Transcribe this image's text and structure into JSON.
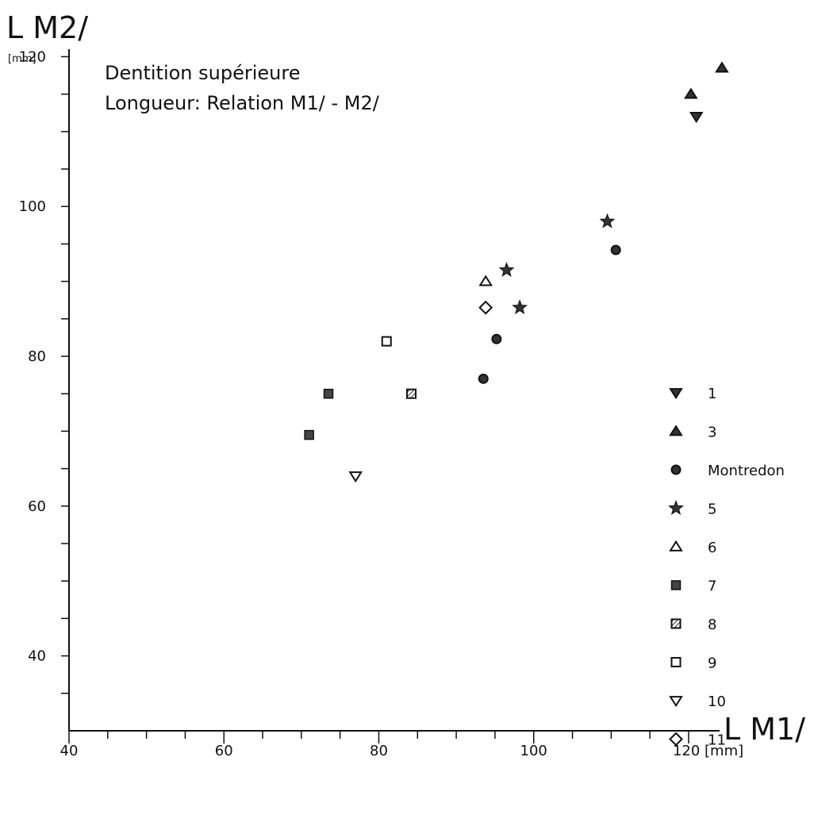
{
  "chart_data": {
    "type": "scatter",
    "title": "Dentition supérieure",
    "subtitle": "Longueur: Relation M1/ - M2/",
    "xlabel": "L M1/",
    "ylabel": "L M2/",
    "x_unit": "[mm]",
    "y_unit": "[mm]",
    "xlim": [
      40,
      124
    ],
    "ylim": [
      30,
      121
    ],
    "x_ticks": [
      40,
      60,
      80,
      100,
      120
    ],
    "x_tick_labels": [
      "40",
      "60",
      "80",
      "100",
      "120 [mm]"
    ],
    "y_ticks": [
      40,
      60,
      80,
      100,
      120
    ],
    "y_tick_labels": [
      "40",
      "60",
      "80",
      "100",
      "120"
    ],
    "grid": false,
    "legend_position": "right",
    "series": [
      {
        "name": "1",
        "marker": "triangle-down-filled",
        "points": [
          [
            121,
            112
          ]
        ]
      },
      {
        "name": "3",
        "marker": "triangle-up-filled",
        "points": [
          [
            120.3,
            115
          ],
          [
            124.3,
            118.5
          ]
        ]
      },
      {
        "name": "Montredon",
        "marker": "circle-filled",
        "points": [
          [
            93.5,
            77
          ],
          [
            95.2,
            82.3
          ],
          [
            110.6,
            94.2
          ]
        ]
      },
      {
        "name": "5",
        "marker": "star-filled",
        "points": [
          [
            96.5,
            91.5
          ],
          [
            98.2,
            86.5
          ],
          [
            109.5,
            98
          ]
        ]
      },
      {
        "name": "6",
        "marker": "triangle-up-open",
        "points": [
          [
            93.8,
            90
          ]
        ]
      },
      {
        "name": "7",
        "marker": "square-filled",
        "points": [
          [
            71,
            69.5
          ],
          [
            73.5,
            75
          ]
        ]
      },
      {
        "name": "8",
        "marker": "square-hatched",
        "points": [
          [
            84.2,
            75
          ]
        ]
      },
      {
        "name": "9",
        "marker": "square-open",
        "points": [
          [
            81,
            82
          ]
        ]
      },
      {
        "name": "10",
        "marker": "triangle-down-open",
        "points": [
          [
            77,
            64
          ]
        ]
      },
      {
        "name": "11",
        "marker": "diamond-open",
        "points": [
          [
            93.8,
            86.5
          ]
        ]
      }
    ]
  }
}
